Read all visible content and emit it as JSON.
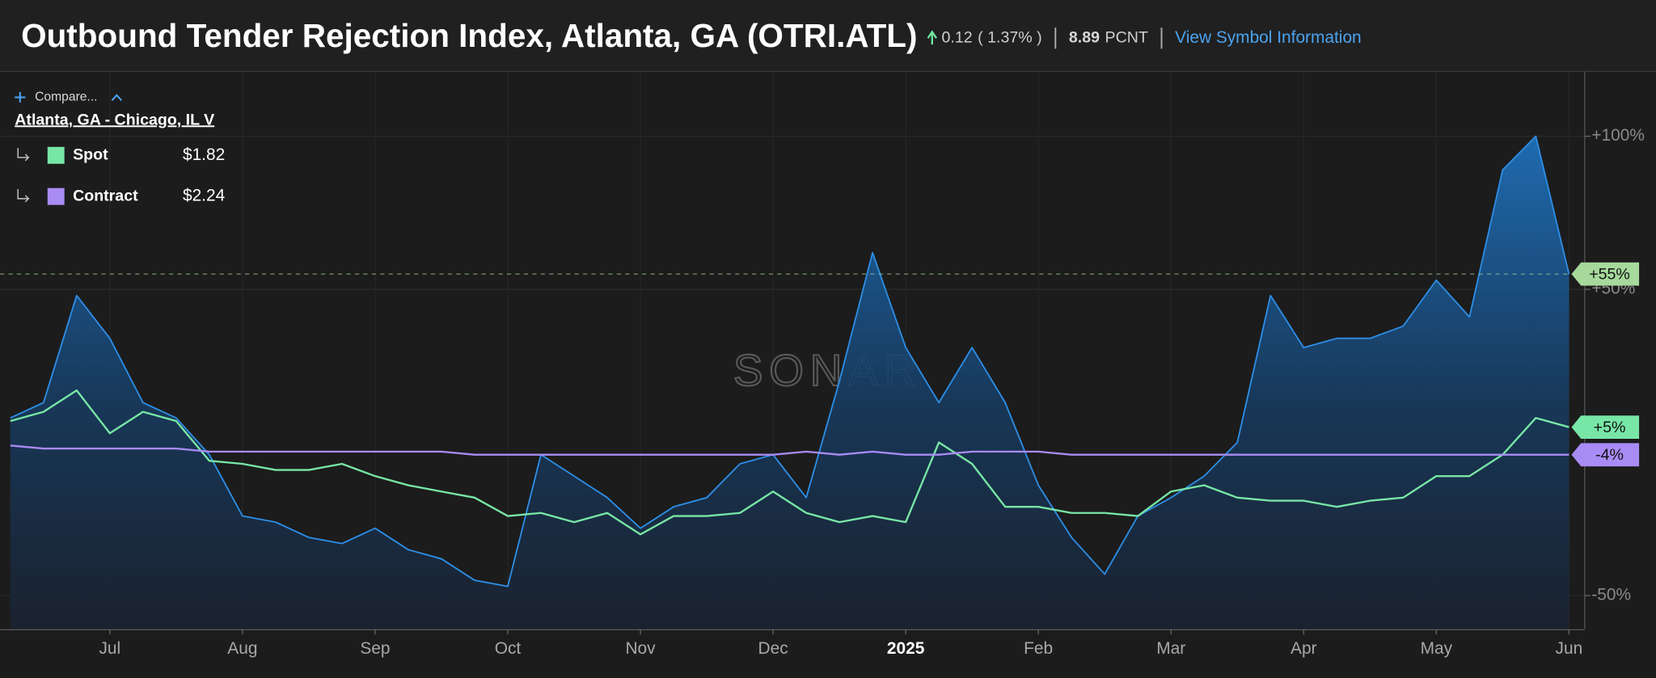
{
  "chart_data": {
    "type": "line",
    "title": "Outbound Tender Rejection Index, Atlanta, GA (OTRI.ATL)",
    "change": "0.12",
    "change_pct": "( 1.37% )",
    "last_value": "8.89",
    "unit": "PCNT",
    "link": "View Symbol Information",
    "compare_label": "Compare...",
    "subtitle": "Atlanta, GA - Chicago, IL V",
    "watermark": "SONAR",
    "categories": [
      null,
      null,
      null,
      "Jul",
      null,
      null,
      null,
      "Aug",
      null,
      null,
      null,
      "Sep",
      null,
      null,
      null,
      "Oct",
      null,
      null,
      null,
      "Nov",
      null,
      null,
      null,
      "Dec",
      null,
      null,
      null,
      "2025",
      null,
      null,
      null,
      "Feb",
      null,
      null,
      null,
      "Mar",
      null,
      null,
      null,
      "Apr",
      null,
      null,
      null,
      "May",
      null,
      null,
      null,
      "Jun"
    ],
    "ylim": [
      -61,
      121
    ],
    "yticks": [
      {
        "value": 100,
        "label": "+100%"
      },
      {
        "value": 50,
        "label": "+50%"
      },
      {
        "value": -50,
        "label": "-50%"
      }
    ],
    "grid": true,
    "series": [
      {
        "color": "#2d8ee6",
        "area": true,
        "label_color": "#a6d99b",
        "last_label": "+55%",
        "reference_line": true,
        "values": [
          8,
          13,
          48,
          34,
          13,
          8,
          -4,
          -24,
          -26,
          -31,
          -33,
          -28,
          -35,
          -38,
          -45,
          -47,
          -4,
          -11,
          -18,
          -28,
          -21,
          -18,
          -7,
          -4,
          -18,
          20,
          62,
          31,
          13,
          31,
          13,
          -14,
          -31,
          -43,
          -24,
          -18,
          -11,
          0,
          48,
          31,
          34,
          34,
          38,
          53,
          41,
          89,
          100,
          55
        ]
      },
      {
        "name": "Spot",
        "legend_value": "$1.82",
        "color": "#78e6a6",
        "label_color": "#78e6a6",
        "last_label": "+5%",
        "values": [
          7,
          10,
          17,
          3,
          10,
          7,
          -6,
          -7,
          -9,
          -9,
          -7,
          -11,
          -14,
          -16,
          -18,
          -24,
          -23,
          -26,
          -23,
          -30,
          -24,
          -24,
          -23,
          -16,
          -23,
          -26,
          -24,
          -26,
          0,
          -7,
          -21,
          -21,
          -23,
          -23,
          -24,
          -16,
          -14,
          -18,
          -19,
          -19,
          -21,
          -19,
          -18,
          -11,
          -11,
          -4,
          8,
          5
        ]
      },
      {
        "name": "Contract",
        "legend_value": "$2.24",
        "color": "#a98bf5",
        "label_color": "#a98bf5",
        "last_label": "-4%",
        "values": [
          -1,
          -2,
          -2,
          -2,
          -2,
          -2,
          -3,
          -3,
          -3,
          -3,
          -3,
          -3,
          -3,
          -3,
          -4,
          -4,
          -4,
          -4,
          -4,
          -4,
          -4,
          -4,
          -4,
          -4,
          -3,
          -4,
          -3,
          -4,
          -4,
          -3,
          -3,
          -3,
          -4,
          -4,
          -4,
          -4,
          -4,
          -4,
          -4,
          -4,
          -4,
          -4,
          -4,
          -4,
          -4,
          -4,
          -4,
          -4
        ]
      }
    ]
  }
}
